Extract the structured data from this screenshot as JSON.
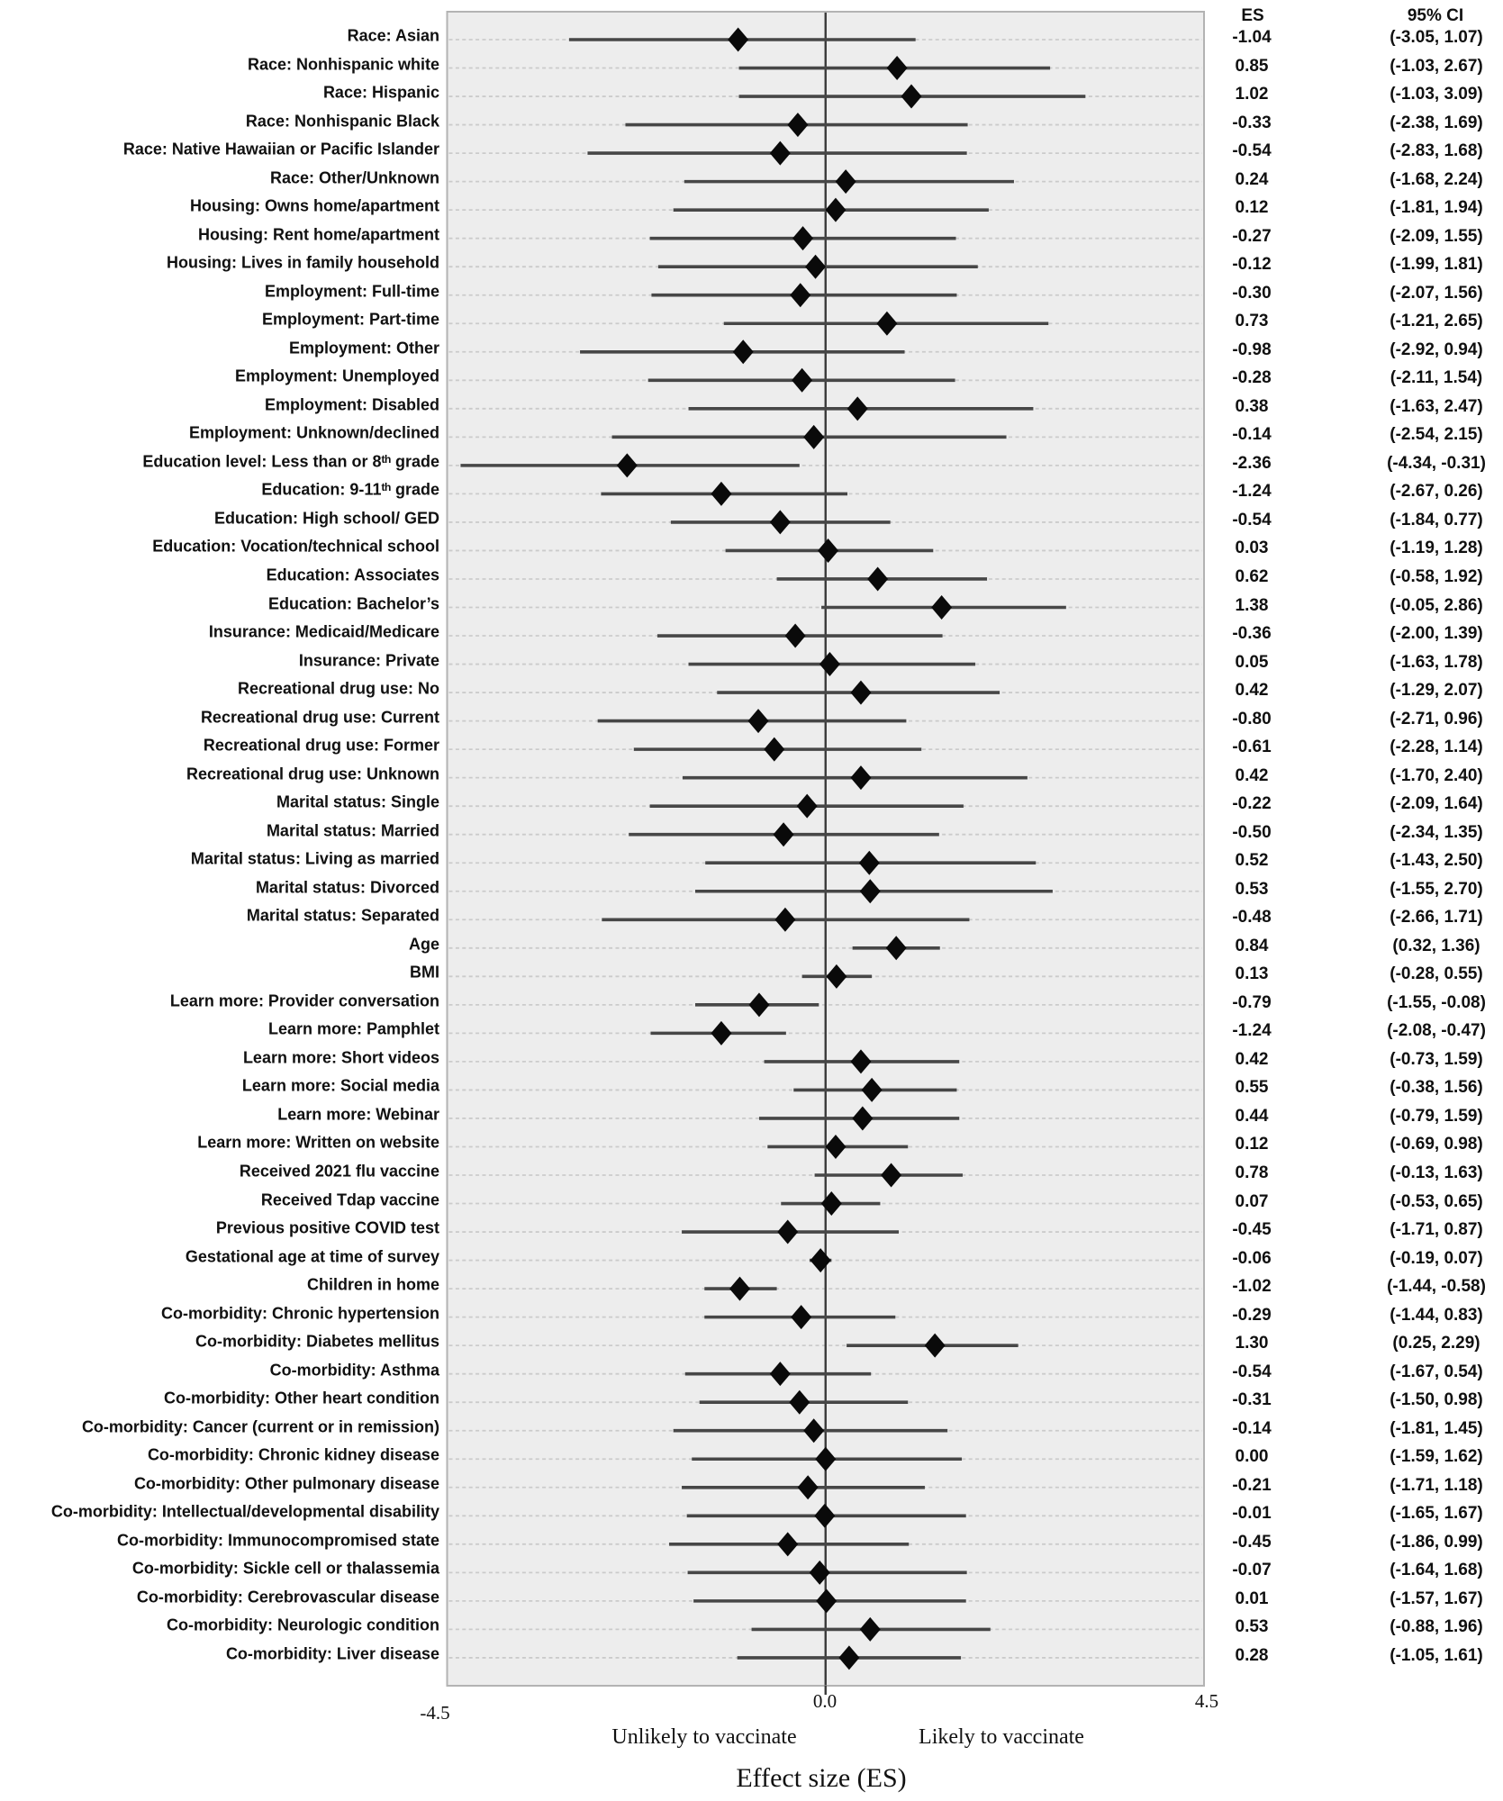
{
  "chart_data": {
    "type": "forest",
    "xlabel": "Effect size (ES)",
    "xlim": [
      -4.5,
      4.5
    ],
    "x_tick_labels": [
      "-4.5",
      "0.0",
      "4.5"
    ],
    "zero_line_value": 0,
    "grid": "dashed-horizontal",
    "legend": "none",
    "columns": {
      "es": "ES",
      "ci": "95% CI"
    },
    "direction_labels": {
      "left": "Unlikely to vaccinate",
      "right": "Likely to vaccinate"
    },
    "colors": {
      "plot_background": "#ededed",
      "plot_border": "#b3b3b3",
      "gridline": "#cbcbcb",
      "zero_line": "#3a3a3a",
      "ci_line": "#474747",
      "diamond": "#0a0a0a",
      "text": "#141414"
    },
    "rows": [
      {
        "label": "Race: Asian",
        "es": -1.04,
        "lo": -3.05,
        "hi": 1.07
      },
      {
        "label": "Race: Nonhispanic white",
        "es": 0.85,
        "lo": -1.03,
        "hi": 2.67
      },
      {
        "label": "Race: Hispanic",
        "es": 1.02,
        "lo": -1.03,
        "hi": 3.09
      },
      {
        "label": "Race: Nonhispanic Black",
        "es": -0.33,
        "lo": -2.38,
        "hi": 1.69
      },
      {
        "label": "Race: Native Hawaiian or Pacific Islander",
        "es": -0.54,
        "lo": -2.83,
        "hi": 1.68
      },
      {
        "label": "Race: Other/Unknown",
        "es": 0.24,
        "lo": -1.68,
        "hi": 2.24
      },
      {
        "label": "Housing: Owns home/apartment",
        "es": 0.12,
        "lo": -1.81,
        "hi": 1.94
      },
      {
        "label": "Housing: Rent home/apartment",
        "es": -0.27,
        "lo": -2.09,
        "hi": 1.55
      },
      {
        "label": "Housing: Lives in family household",
        "es": -0.12,
        "lo": -1.99,
        "hi": 1.81
      },
      {
        "label": "Employment: Full-time",
        "es": -0.3,
        "lo": -2.07,
        "hi": 1.56
      },
      {
        "label": "Employment: Part-time",
        "es": 0.73,
        "lo": -1.21,
        "hi": 2.65
      },
      {
        "label": "Employment: Other",
        "es": -0.98,
        "lo": -2.92,
        "hi": 0.94
      },
      {
        "label": "Employment: Unemployed",
        "es": -0.28,
        "lo": -2.11,
        "hi": 1.54
      },
      {
        "label": "Employment: Disabled",
        "es": 0.38,
        "lo": -1.63,
        "hi": 2.47
      },
      {
        "label": "Employment: Unknown/declined",
        "es": -0.14,
        "lo": -2.54,
        "hi": 2.15
      },
      {
        "label": "Education level: Less than or 8ᵗʰ grade",
        "es": -2.36,
        "lo": -4.34,
        "hi": -0.31
      },
      {
        "label": "Education: 9-11ᵗʰ grade",
        "es": -1.24,
        "lo": -2.67,
        "hi": 0.26
      },
      {
        "label": "Education: High school/ GED",
        "es": -0.54,
        "lo": -1.84,
        "hi": 0.77
      },
      {
        "label": "Education: Vocation/technical school",
        "es": 0.03,
        "lo": -1.19,
        "hi": 1.28
      },
      {
        "label": "Education: Associates",
        "es": 0.62,
        "lo": -0.58,
        "hi": 1.92
      },
      {
        "label": "Education: Bachelor’s",
        "es": 1.38,
        "lo": -0.05,
        "hi": 2.86
      },
      {
        "label": "Insurance: Medicaid/Medicare",
        "es": -0.36,
        "lo": -2.0,
        "hi": 1.39
      },
      {
        "label": "Insurance: Private",
        "es": 0.05,
        "lo": -1.63,
        "hi": 1.78
      },
      {
        "label": "Recreational drug use: No",
        "es": 0.42,
        "lo": -1.29,
        "hi": 2.07
      },
      {
        "label": "Recreational drug use: Current",
        "es": -0.8,
        "lo": -2.71,
        "hi": 0.96
      },
      {
        "label": "Recreational drug use: Former",
        "es": -0.61,
        "lo": -2.28,
        "hi": 1.14
      },
      {
        "label": "Recreational drug use: Unknown",
        "es": 0.42,
        "lo": -1.7,
        "hi": 2.4
      },
      {
        "label": "Marital status: Single",
        "es": -0.22,
        "lo": -2.09,
        "hi": 1.64
      },
      {
        "label": "Marital status: Married",
        "es": -0.5,
        "lo": -2.34,
        "hi": 1.35
      },
      {
        "label": "Marital status: Living as married",
        "es": 0.52,
        "lo": -1.43,
        "hi": 2.5
      },
      {
        "label": "Marital status: Divorced",
        "es": 0.53,
        "lo": -1.55,
        "hi": 2.7
      },
      {
        "label": "Marital status: Separated",
        "es": -0.48,
        "lo": -2.66,
        "hi": 1.71
      },
      {
        "label": "Age",
        "es": 0.84,
        "lo": 0.32,
        "hi": 1.36
      },
      {
        "label": "BMI",
        "es": 0.13,
        "lo": -0.28,
        "hi": 0.55
      },
      {
        "label": "Learn more: Provider conversation",
        "es": -0.79,
        "lo": -1.55,
        "hi": -0.08
      },
      {
        "label": "Learn more: Pamphlet",
        "es": -1.24,
        "lo": -2.08,
        "hi": -0.47
      },
      {
        "label": "Learn more: Short videos",
        "es": 0.42,
        "lo": -0.73,
        "hi": 1.59
      },
      {
        "label": "Learn more: Social media",
        "es": 0.55,
        "lo": -0.38,
        "hi": 1.56
      },
      {
        "label": "Learn more: Webinar",
        "es": 0.44,
        "lo": -0.79,
        "hi": 1.59
      },
      {
        "label": "Learn more: Written on website",
        "es": 0.12,
        "lo": -0.69,
        "hi": 0.98
      },
      {
        "label": "Received 2021 flu vaccine",
        "es": 0.78,
        "lo": -0.13,
        "hi": 1.63
      },
      {
        "label": "Received Tdap vaccine",
        "es": 0.07,
        "lo": -0.53,
        "hi": 0.65
      },
      {
        "label": "Previous positive COVID test",
        "es": -0.45,
        "lo": -1.71,
        "hi": 0.87
      },
      {
        "label": "Gestational age at time of survey",
        "es": -0.06,
        "lo": -0.19,
        "hi": 0.07
      },
      {
        "label": "Children in home",
        "es": -1.02,
        "lo": -1.44,
        "hi": -0.58
      },
      {
        "label": "Co-morbidity: Chronic hypertension",
        "es": -0.29,
        "lo": -1.44,
        "hi": 0.83
      },
      {
        "label": "Co-morbidity: Diabetes mellitus",
        "es": 1.3,
        "lo": 0.25,
        "hi": 2.29
      },
      {
        "label": "Co-morbidity: Asthma",
        "es": -0.54,
        "lo": -1.67,
        "hi": 0.54
      },
      {
        "label": "Co-morbidity: Other heart condition",
        "es": -0.31,
        "lo": -1.5,
        "hi": 0.98
      },
      {
        "label": "Co-morbidity: Cancer (current or in remission)",
        "es": -0.14,
        "lo": -1.81,
        "hi": 1.45
      },
      {
        "label": "Co-morbidity: Chronic kidney disease",
        "es": 0.0,
        "lo": -1.59,
        "hi": 1.62
      },
      {
        "label": "Co-morbidity: Other pulmonary disease",
        "es": -0.21,
        "lo": -1.71,
        "hi": 1.18
      },
      {
        "label": "Co-morbidity: Intellectual/developmental disability",
        "es": -0.01,
        "lo": -1.65,
        "hi": 1.67
      },
      {
        "label": "Co-morbidity: Immunocompromised state",
        "es": -0.45,
        "lo": -1.86,
        "hi": 0.99
      },
      {
        "label": "Co-morbidity: Sickle cell or thalassemia",
        "es": -0.07,
        "lo": -1.64,
        "hi": 1.68
      },
      {
        "label": "Co-morbidity: Cerebrovascular disease",
        "es": 0.01,
        "lo": -1.57,
        "hi": 1.67
      },
      {
        "label": "Co-morbidity: Neurologic condition",
        "es": 0.53,
        "lo": -0.88,
        "hi": 1.96
      },
      {
        "label": "Co-morbidity: Liver disease",
        "es": 0.28,
        "lo": -1.05,
        "hi": 1.61
      }
    ]
  }
}
